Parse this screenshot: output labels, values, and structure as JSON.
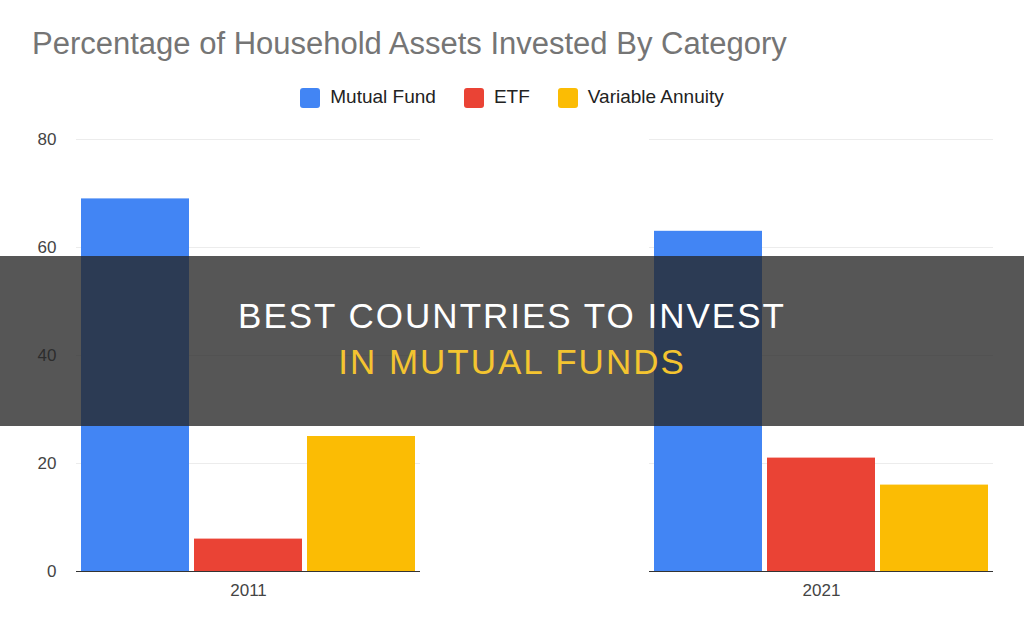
{
  "chart_data": {
    "type": "bar",
    "title": "Percentage of Household Assets Invested By Category",
    "categories": [
      "2011",
      "2021"
    ],
    "series": [
      {
        "name": "Mutual Fund",
        "color": "#4285f4",
        "values": [
          69,
          63
        ]
      },
      {
        "name": "ETF",
        "color": "#ea4335",
        "values": [
          6,
          21
        ]
      },
      {
        "name": "Variable Annuity",
        "color": "#fbbc04",
        "values": [
          25,
          16
        ]
      }
    ],
    "ylim": [
      0,
      80
    ],
    "yticks": [
      0,
      20,
      40,
      60,
      80
    ],
    "grid": true,
    "legend": "top",
    "annotations": [
      "BEST COUNTRIES TO INVEST",
      "IN MUTUAL FUNDS"
    ]
  }
}
